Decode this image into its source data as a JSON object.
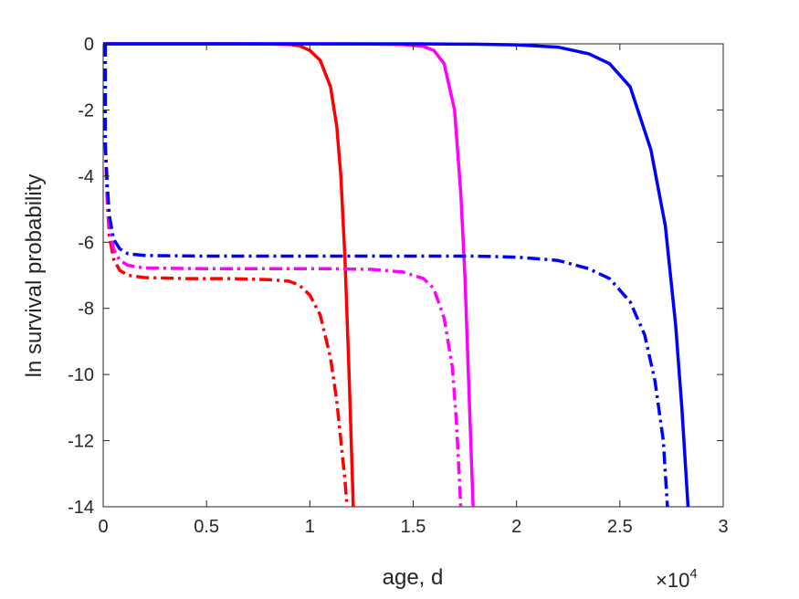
{
  "chart_data": {
    "type": "line",
    "title": "",
    "xlabel": "age, d",
    "ylabel": "ln survival probability",
    "x_multiplier_base": "×10",
    "x_multiplier_exp": "4",
    "xlim": [
      0,
      3
    ],
    "ylim": [
      -14,
      0
    ],
    "xticks": [
      0,
      0.5,
      1,
      1.5,
      2,
      2.5,
      3
    ],
    "xtick_labels": [
      "0",
      "0.5",
      "1",
      "1.5",
      "2",
      "2.5",
      "3"
    ],
    "yticks": [
      0,
      -2,
      -4,
      -6,
      -8,
      -10,
      -12,
      -14
    ],
    "ytick_labels": [
      "0",
      "-2",
      "-4",
      "-6",
      "-8",
      "-10",
      "-12",
      "-14"
    ],
    "grid": false,
    "legend": "none",
    "series": [
      {
        "color": "#ff0000",
        "style": "solid",
        "x": [
          0,
          0.2,
          0.4,
          0.6,
          0.8,
          0.9,
          0.95,
          1.0,
          1.05,
          1.1,
          1.13,
          1.15,
          1.17,
          1.19,
          1.21
        ],
        "y": [
          0,
          0,
          0,
          0,
          -0.005,
          -0.02,
          -0.06,
          -0.2,
          -0.5,
          -1.3,
          -2.5,
          -4.0,
          -6.5,
          -10.0,
          -14.0
        ]
      },
      {
        "color": "#ff00ff",
        "style": "solid",
        "x": [
          0,
          0.5,
          1.0,
          1.3,
          1.45,
          1.55,
          1.6,
          1.65,
          1.7,
          1.73,
          1.75,
          1.77,
          1.79
        ],
        "y": [
          0,
          0,
          0,
          -0.005,
          -0.02,
          -0.08,
          -0.2,
          -0.6,
          -2.0,
          -4.5,
          -7.0,
          -10.5,
          -14.0
        ]
      },
      {
        "color": "#0000ff",
        "style": "solid",
        "x": [
          0,
          0.5,
          1.0,
          1.5,
          1.8,
          2.0,
          2.2,
          2.35,
          2.45,
          2.55,
          2.65,
          2.72,
          2.77,
          2.8,
          2.83
        ],
        "y": [
          0,
          0,
          0,
          0,
          -0.01,
          -0.03,
          -0.1,
          -0.3,
          -0.6,
          -1.3,
          -3.2,
          -5.5,
          -8.5,
          -11.0,
          -14.0
        ]
      },
      {
        "color": "#ff0000",
        "style": "dashdot",
        "x": [
          0.01,
          0.01,
          0.02,
          0.03,
          0.05,
          0.08,
          0.12,
          0.2,
          0.4,
          0.6,
          0.8,
          0.9,
          0.95,
          1.0,
          1.05,
          1.1,
          1.13,
          1.15,
          1.17,
          1.18
        ],
        "y": [
          0,
          -3.0,
          -4.8,
          -5.8,
          -6.5,
          -6.85,
          -7.0,
          -7.07,
          -7.1,
          -7.1,
          -7.13,
          -7.18,
          -7.3,
          -7.6,
          -8.2,
          -9.5,
          -10.8,
          -12.0,
          -13.2,
          -14.0
        ]
      },
      {
        "color": "#ff00ff",
        "style": "dashdot",
        "x": [
          0.01,
          0.01,
          0.02,
          0.03,
          0.05,
          0.08,
          0.12,
          0.2,
          0.5,
          0.8,
          1.1,
          1.3,
          1.45,
          1.55,
          1.6,
          1.65,
          1.69,
          1.71,
          1.73
        ],
        "y": [
          0,
          -3.0,
          -4.6,
          -5.5,
          -6.2,
          -6.55,
          -6.7,
          -6.78,
          -6.8,
          -6.8,
          -6.8,
          -6.82,
          -6.9,
          -7.1,
          -7.4,
          -8.3,
          -9.8,
          -11.5,
          -14.0
        ]
      },
      {
        "color": "#0000ff",
        "style": "dashdot",
        "x": [
          0.01,
          0.01,
          0.02,
          0.03,
          0.05,
          0.08,
          0.12,
          0.2,
          0.5,
          1.0,
          1.5,
          1.8,
          2.0,
          2.2,
          2.35,
          2.45,
          2.55,
          2.62,
          2.67,
          2.71,
          2.73
        ],
        "y": [
          0,
          -3.0,
          -4.3,
          -5.2,
          -5.9,
          -6.2,
          -6.35,
          -6.4,
          -6.42,
          -6.42,
          -6.42,
          -6.42,
          -6.45,
          -6.55,
          -6.8,
          -7.1,
          -7.8,
          -8.8,
          -10.2,
          -12.0,
          -14.0
        ]
      }
    ]
  }
}
